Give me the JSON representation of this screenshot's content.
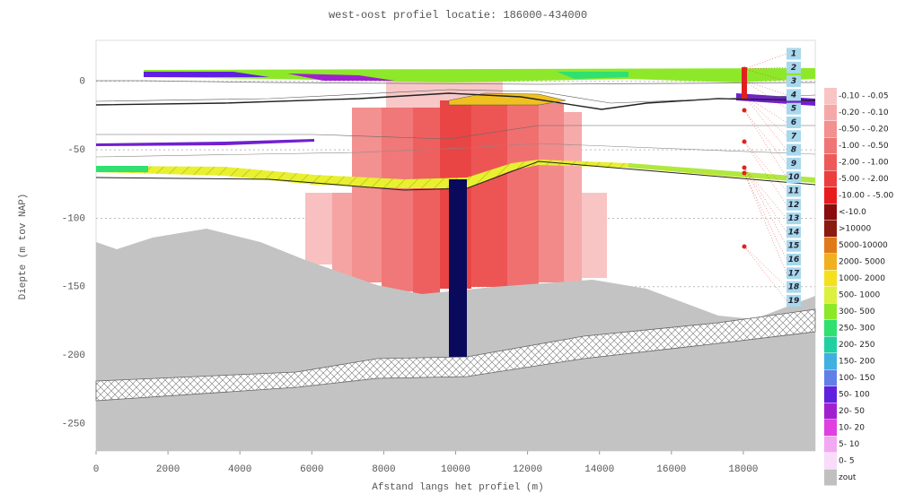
{
  "chart_data": {
    "type": "profile",
    "title": "west-oost profiel locatie: 186000-434000",
    "xlabel": "Afstand langs het profiel (m)",
    "ylabel": "Diepte (m tov NAP)",
    "xlim": [
      0,
      20000
    ],
    "xticks": [
      0,
      2000,
      4000,
      6000,
      8000,
      10000,
      12000,
      14000,
      16000,
      18000
    ],
    "ylim": [
      -270,
      30
    ],
    "yticks": [
      0,
      -50,
      -100,
      -150,
      -200,
      -250
    ],
    "grid": true,
    "layer_labels": [
      "1",
      "2",
      "3",
      "4",
      "5",
      "6",
      "7",
      "8",
      "9",
      "10",
      "11",
      "12",
      "13",
      "14",
      "15",
      "16",
      "17",
      "18",
      "19"
    ],
    "legend": [
      {
        "label": "-0.10 - -0.05",
        "color": "#f9c4c4"
      },
      {
        "label": "-0.20 - -0.10",
        "color": "#f6a8a8"
      },
      {
        "label": "-0.50 - -0.20",
        "color": "#f39090"
      },
      {
        "label": "-1.00 - -0.50",
        "color": "#f07474"
      },
      {
        "label": "-2.00 - -1.00",
        "color": "#ee5a5a"
      },
      {
        "label": "-5.00 - -2.00",
        "color": "#ec3e3e"
      },
      {
        "label": "-10.00 - -5.00",
        "color": "#e81c1c"
      },
      {
        "label": "<-10.0",
        "color": "#8a0c0c"
      },
      {
        "label": ">10000",
        "color": "#8b1a10"
      },
      {
        "label": "5000-10000",
        "color": "#e07a18"
      },
      {
        "label": "2000- 5000",
        "color": "#f0b020"
      },
      {
        "label": "1000- 2000",
        "color": "#f5e020"
      },
      {
        "label": "500- 1000",
        "color": "#dcf040"
      },
      {
        "label": "300- 500",
        "color": "#8ee82a"
      },
      {
        "label": "250- 300",
        "color": "#30e070"
      },
      {
        "label": "200- 250",
        "color": "#20d0a0"
      },
      {
        "label": "150- 200",
        "color": "#40b0e0"
      },
      {
        "label": "100- 150",
        "color": "#6080e8"
      },
      {
        "label": "50- 100",
        "color": "#6020e0"
      },
      {
        "label": "20- 50",
        "color": "#a020d0"
      },
      {
        "label": "10- 20",
        "color": "#e040e0"
      },
      {
        "label": "5- 10",
        "color": "#f2a8f2"
      },
      {
        "label": "0- 5",
        "color": "#fadcfa"
      },
      {
        "label": "zout",
        "color": "#c0c0c0"
      }
    ]
  }
}
